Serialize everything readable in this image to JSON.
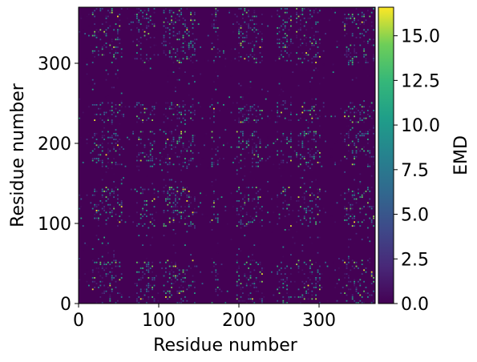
{
  "chart_data": {
    "type": "heatmap",
    "title": "",
    "xlabel": "Residue number",
    "ylabel": "Residue number",
    "xlim": [
      0,
      370
    ],
    "ylim": [
      0,
      370
    ],
    "xticks": [
      0,
      100,
      200,
      300
    ],
    "yticks": [
      0,
      100,
      200,
      300
    ],
    "colorbar": {
      "label": "EMD",
      "range": [
        0.0,
        16.6
      ],
      "ticks": [
        "0.0",
        "2.5",
        "5.0",
        "7.5",
        "10.0",
        "12.5",
        "15.0"
      ],
      "colormap": "viridis"
    },
    "background_value": 0.0,
    "hot_residue_bands": [
      [
        15,
        55
      ],
      [
        70,
        95
      ],
      [
        105,
        145
      ],
      [
        165,
        175
      ],
      [
        195,
        230
      ],
      [
        245,
        265
      ],
      [
        270,
        300
      ],
      [
        330,
        370
      ]
    ],
    "hot_rows": [
      [
        0,
        55
      ],
      [
        95,
        145
      ],
      [
        170,
        215
      ],
      [
        225,
        250
      ],
      [
        300,
        370
      ]
    ],
    "observation": "Sparse dotted pattern of high EMD values (up to ~16) against a near-zero background; brightest blocks near residues 15-55 x 200-370 and 195-230 / 330-370 x 15-55."
  }
}
